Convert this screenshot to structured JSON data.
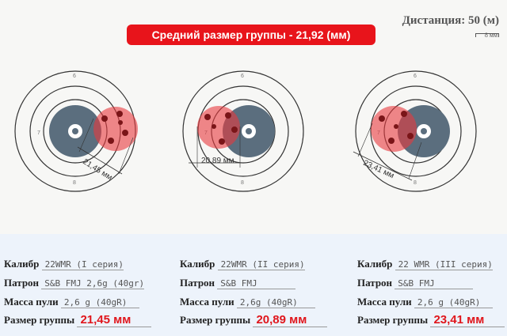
{
  "banner": {
    "title": "Средний размер группы - 21,92 (мм)"
  },
  "distance": {
    "label": "Дистанция: 50 (м)",
    "scale_label": "8 мм"
  },
  "ring_numbers": [
    "6",
    "7",
    "8"
  ],
  "labels": {
    "caliber": "Калибр",
    "cartridge": "Патрон",
    "bullet_mass": "Масса пули",
    "group_size": "Размер группы"
  },
  "series": [
    {
      "caliber": "22WMR (I серия)",
      "cartridge": "S&B FMJ 2,6g (40gr)",
      "mass": "2,6 g (40gR)",
      "group": "21,45 мм",
      "measure": "21,45 мм"
    },
    {
      "caliber": "22WMR (II серия)",
      "cartridge": "S&B FMJ",
      "mass": "2,6g (40gR)",
      "group": "20,89 мм",
      "measure": "20,89 мм"
    },
    {
      "caliber": "22 WMR (III серия)",
      "cartridge": "S&B FMJ",
      "mass": "2,6 g (40gR)",
      "group": "23,41 мм",
      "measure": "23,41 мм"
    }
  ],
  "colors": {
    "banner": "#e8141b",
    "group": "#e8383e",
    "bull": "#5b6e7e",
    "result": "#e0161c"
  }
}
